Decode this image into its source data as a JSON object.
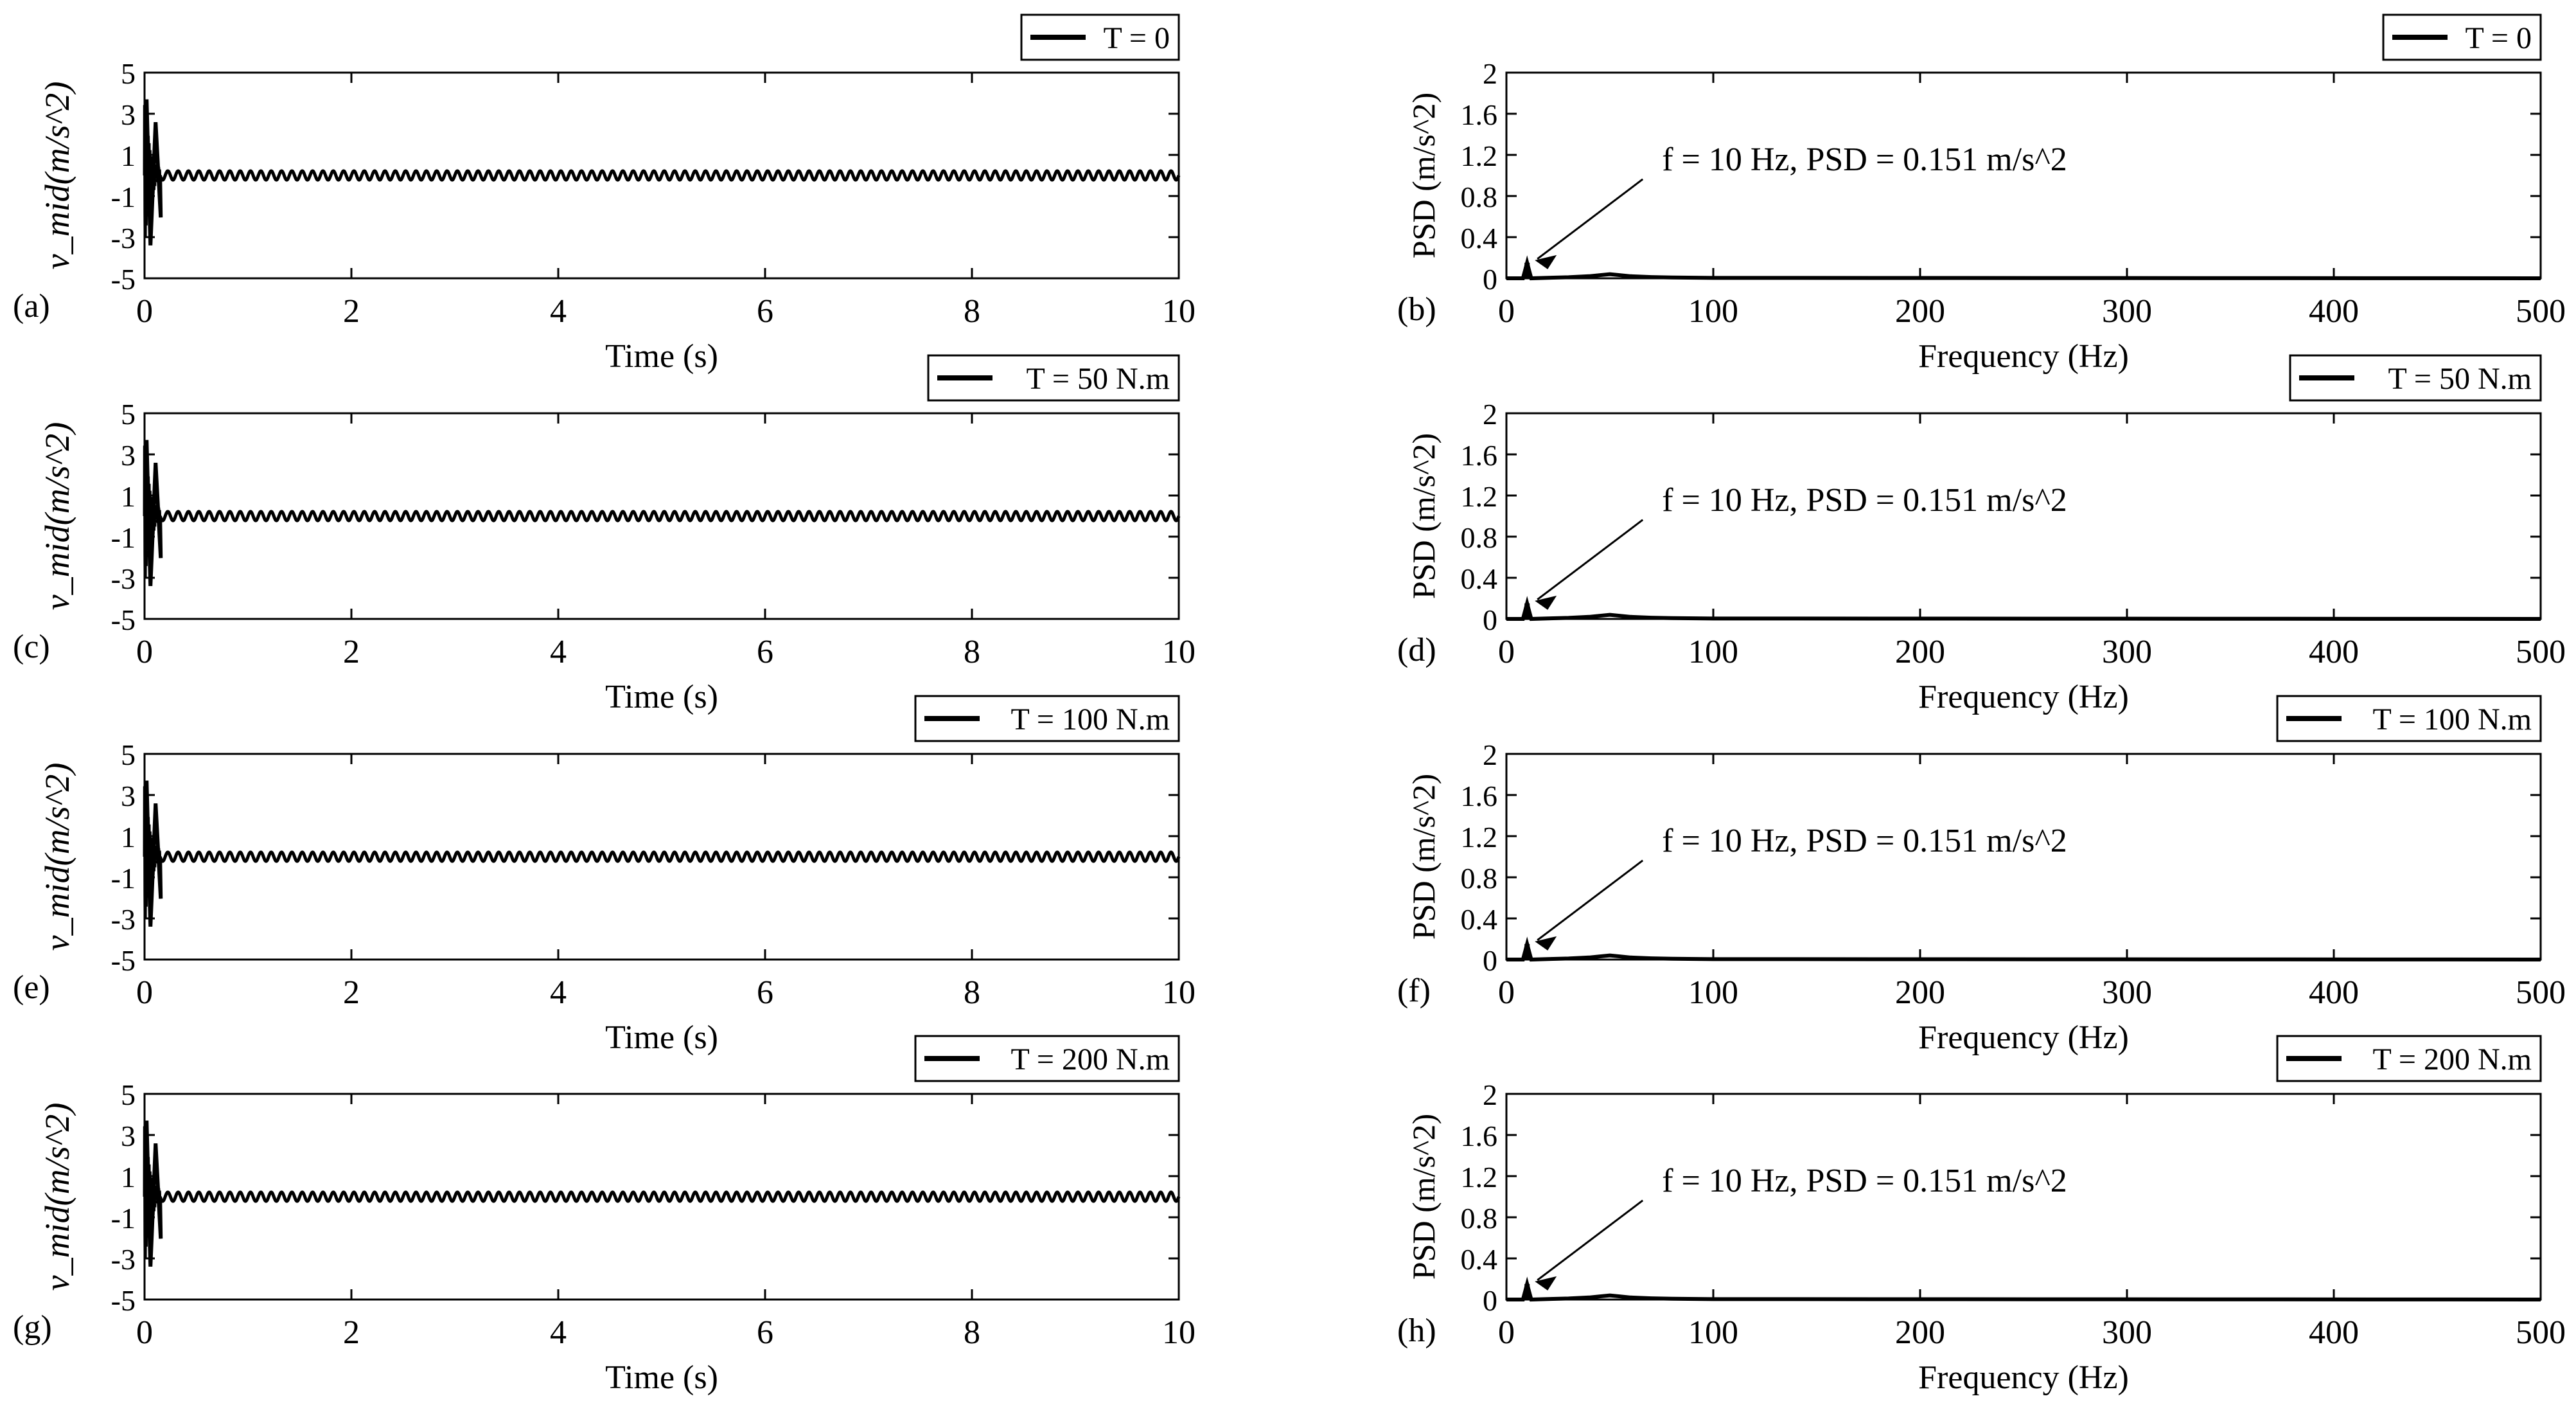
{
  "chart_data": [
    {
      "type": "line",
      "panel_label": "(a)",
      "xlabel": "Time (s)",
      "ylabel": "v_mid(m/s^2)",
      "xlim": [
        0,
        10
      ],
      "ylim": [
        -5,
        5
      ],
      "xticks": [
        "0",
        "2",
        "4",
        "6",
        "8",
        "10"
      ],
      "yticks": [
        "5",
        "3",
        "1",
        "-1",
        "-3",
        "-5"
      ],
      "legend": "T = 0",
      "legend_position": "top-right",
      "series": [
        {
          "transient_peak": 3.7,
          "transient_trough": -3.4,
          "decay_end_time": 0.15,
          "steady_amplitude": 0.22,
          "steady_frequency_hz": 10
        }
      ]
    },
    {
      "type": "line",
      "panel_label": "(b)",
      "xlabel": "Frequency (Hz)",
      "ylabel": "PSD (m/s^2)",
      "xlim": [
        0,
        500
      ],
      "ylim": [
        0,
        2
      ],
      "xticks": [
        "0",
        "100",
        "200",
        "300",
        "400",
        "500"
      ],
      "yticks": [
        "2",
        "1.6",
        "1.2",
        "0.8",
        "0.4",
        "0"
      ],
      "legend": "T = 0",
      "legend_position": "top-right",
      "annotation": {
        "text": "f = 10 Hz,  PSD = 0.151 m/s^2",
        "x": 10,
        "y": 0.151
      },
      "series": [
        {
          "x": [
            0,
            8,
            10,
            12,
            20,
            30,
            40,
            45,
            50,
            55,
            60,
            70,
            80,
            100,
            500
          ],
          "values": [
            0,
            0,
            0.151,
            0,
            0.005,
            0.01,
            0.02,
            0.03,
            0.04,
            0.03,
            0.02,
            0.012,
            0.008,
            0.004,
            0
          ]
        }
      ]
    },
    {
      "type": "line",
      "panel_label": "(c)",
      "xlabel": "Time (s)",
      "ylabel": "v_mid(m/s^2)",
      "xlim": [
        0,
        10
      ],
      "ylim": [
        -5,
        5
      ],
      "xticks": [
        "0",
        "2",
        "4",
        "6",
        "8",
        "10"
      ],
      "yticks": [
        "5",
        "3",
        "1",
        "-1",
        "-3",
        "-5"
      ],
      "legend": "T = 50 N.m",
      "legend_position": "top-right",
      "series": [
        {
          "transient_peak": 3.7,
          "transient_trough": -3.4,
          "decay_end_time": 0.15,
          "steady_amplitude": 0.22,
          "steady_frequency_hz": 10
        }
      ]
    },
    {
      "type": "line",
      "panel_label": "(d)",
      "xlabel": "Frequency (Hz)",
      "ylabel": "PSD (m/s^2)",
      "xlim": [
        0,
        500
      ],
      "ylim": [
        0,
        2
      ],
      "xticks": [
        "0",
        "100",
        "200",
        "300",
        "400",
        "500"
      ],
      "yticks": [
        "2",
        "1.6",
        "1.2",
        "0.8",
        "0.4",
        "0"
      ],
      "legend": "T = 50 N.m",
      "legend_position": "top-right",
      "annotation": {
        "text": "f = 10 Hz,  PSD = 0.151 m/s^2",
        "x": 10,
        "y": 0.151
      },
      "series": [
        {
          "x": [
            0,
            8,
            10,
            12,
            20,
            30,
            40,
            45,
            50,
            55,
            60,
            70,
            80,
            100,
            500
          ],
          "values": [
            0,
            0,
            0.151,
            0,
            0.005,
            0.01,
            0.02,
            0.03,
            0.04,
            0.03,
            0.02,
            0.012,
            0.008,
            0.004,
            0
          ]
        }
      ]
    },
    {
      "type": "line",
      "panel_label": "(e)",
      "xlabel": "Time (s)",
      "ylabel": "v_mid(m/s^2)",
      "xlim": [
        0,
        10
      ],
      "ylim": [
        -5,
        5
      ],
      "xticks": [
        "0",
        "2",
        "4",
        "6",
        "8",
        "10"
      ],
      "yticks": [
        "5",
        "3",
        "1",
        "-1",
        "-3",
        "-5"
      ],
      "legend": "T = 100 N.m",
      "legend_position": "top-right",
      "series": [
        {
          "transient_peak": 3.7,
          "transient_trough": -3.4,
          "decay_end_time": 0.15,
          "steady_amplitude": 0.22,
          "steady_frequency_hz": 10
        }
      ]
    },
    {
      "type": "line",
      "panel_label": "(f)",
      "xlabel": "Frequency (Hz)",
      "ylabel": "PSD (m/s^2)",
      "xlim": [
        0,
        500
      ],
      "ylim": [
        0,
        2
      ],
      "xticks": [
        "0",
        "100",
        "200",
        "300",
        "400",
        "500"
      ],
      "yticks": [
        "2",
        "1.6",
        "1.2",
        "0.8",
        "0.4",
        "0"
      ],
      "legend": "T = 100 N.m",
      "legend_position": "top-right",
      "annotation": {
        "text": "f = 10 Hz,  PSD = 0.151 m/s^2",
        "x": 10,
        "y": 0.151
      },
      "series": [
        {
          "x": [
            0,
            8,
            10,
            12,
            20,
            30,
            40,
            45,
            50,
            55,
            60,
            70,
            80,
            100,
            500
          ],
          "values": [
            0,
            0,
            0.151,
            0,
            0.005,
            0.01,
            0.02,
            0.03,
            0.04,
            0.03,
            0.02,
            0.012,
            0.008,
            0.004,
            0
          ]
        }
      ]
    },
    {
      "type": "line",
      "panel_label": "(g)",
      "xlabel": "Time (s)",
      "ylabel": "v_mid(m/s^2)",
      "xlim": [
        0,
        10
      ],
      "ylim": [
        -5,
        5
      ],
      "xticks": [
        "0",
        "2",
        "4",
        "6",
        "8",
        "10"
      ],
      "yticks": [
        "5",
        "3",
        "1",
        "-1",
        "-3",
        "-5"
      ],
      "legend": "T = 200 N.m",
      "legend_position": "top-right",
      "series": [
        {
          "transient_peak": 3.7,
          "transient_trough": -3.4,
          "decay_end_time": 0.15,
          "steady_amplitude": 0.22,
          "steady_frequency_hz": 10
        }
      ]
    },
    {
      "type": "line",
      "panel_label": "(h)",
      "xlabel": "Frequency (Hz)",
      "ylabel": "PSD (m/s^2)",
      "xlim": [
        0,
        500
      ],
      "ylim": [
        0,
        2
      ],
      "xticks": [
        "0",
        "100",
        "200",
        "300",
        "400",
        "500"
      ],
      "yticks": [
        "2",
        "1.6",
        "1.2",
        "0.8",
        "0.4",
        "0"
      ],
      "legend": "T = 200 N.m",
      "legend_position": "top-right",
      "annotation": {
        "text": "f = 10 Hz,  PSD = 0.151 m/s^2",
        "x": 10,
        "y": 0.151
      },
      "series": [
        {
          "x": [
            0,
            8,
            10,
            12,
            20,
            30,
            40,
            45,
            50,
            55,
            60,
            70,
            80,
            100,
            500
          ],
          "values": [
            0,
            0,
            0.151,
            0,
            0.005,
            0.01,
            0.02,
            0.03,
            0.04,
            0.03,
            0.02,
            0.012,
            0.008,
            0.004,
            0
          ]
        }
      ]
    }
  ]
}
